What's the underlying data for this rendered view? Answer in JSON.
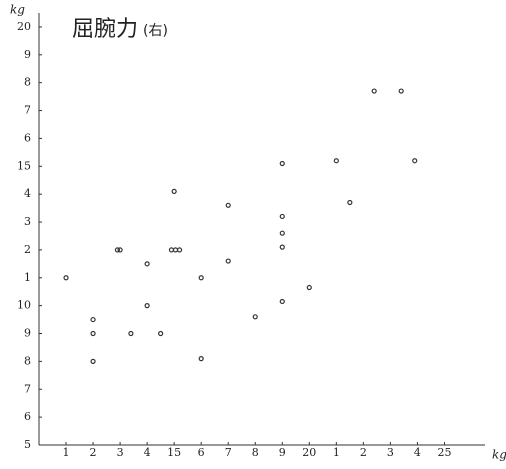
{
  "chart_data": {
    "type": "scatter",
    "title": "屈腕力",
    "title_suffix": "(右)",
    "y_unit": "kg",
    "x_unit": "kg",
    "color": "#333333",
    "grid": false,
    "xlim": [
      10,
      26.5
    ],
    "ylim": [
      5,
      20.5
    ],
    "xticks": [
      {
        "value": 11,
        "label": "1"
      },
      {
        "value": 12,
        "label": "2"
      },
      {
        "value": 13,
        "label": "3"
      },
      {
        "value": 14,
        "label": "4"
      },
      15,
      {
        "value": 16,
        "label": "6"
      },
      {
        "value": 17,
        "label": "7"
      },
      {
        "value": 18,
        "label": "8"
      },
      {
        "value": 19,
        "label": "9"
      },
      20,
      {
        "value": 21,
        "label": "1"
      },
      {
        "value": 22,
        "label": "2"
      },
      {
        "value": 23,
        "label": "3"
      },
      {
        "value": 24,
        "label": "4"
      },
      25
    ],
    "yticks": [
      5,
      6,
      7,
      8,
      9,
      10,
      {
        "value": 11,
        "label": "1"
      },
      {
        "value": 12,
        "label": "2"
      },
      {
        "value": 13,
        "label": "3"
      },
      {
        "value": 14,
        "label": "4"
      },
      15,
      {
        "value": 16,
        "label": "6"
      },
      {
        "value": 17,
        "label": "7"
      },
      {
        "value": 18,
        "label": "8"
      },
      {
        "value": 19,
        "label": "9"
      },
      20
    ],
    "x": [
      11,
      12,
      12,
      12,
      12.9,
      13,
      13.4,
      14,
      14,
      14.5,
      15,
      14.9,
      15.05,
      15.2,
      16,
      16,
      17,
      17,
      18,
      19,
      19,
      19,
      19,
      19,
      20,
      21,
      21.5,
      22.4,
      23.4,
      23.9
    ],
    "values": [
      11,
      9.5,
      9,
      8,
      12,
      12,
      9,
      11.5,
      10,
      9,
      14.1,
      12,
      12,
      12,
      11,
      8.1,
      13.6,
      11.6,
      9.6,
      15.1,
      13.2,
      12.6,
      12.1,
      10.15,
      10.65,
      15.2,
      13.7,
      17.7,
      17.7,
      15.2
    ]
  }
}
